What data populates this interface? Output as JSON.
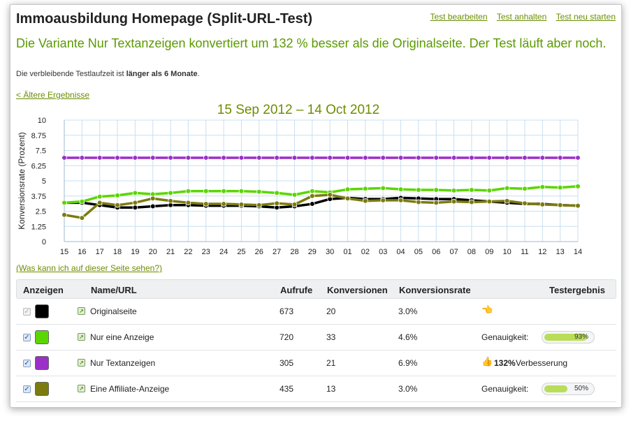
{
  "header": {
    "title": "Immoausbildung Homepage (Split-URL-Test)",
    "links": [
      "Test bearbeiten",
      "Test anhalten",
      "Test neu starten"
    ]
  },
  "summary": {
    "headline": "Die Variante Nur Textanzeigen konvertiert um 132 % besser als die Originalseite. Der Test läuft aber noch.",
    "remaining_prefix": "Die verbleibende Testlaufzeit ist ",
    "remaining_value": "länger als 6 Monate",
    "remaining_suffix": "."
  },
  "older_results_link": "< Ältere Ergebnisse",
  "date_range": "15 Sep 2012 – 14 Oct 2012",
  "help_link": "(Was kann ich auf dieser Seite sehen?)",
  "chart_data": {
    "type": "line",
    "title": "15 Sep 2012 – 14 Oct 2012",
    "xlabel": "",
    "ylabel": "Konversionsrate (Prozent)",
    "categories": [
      "15",
      "16",
      "17",
      "18",
      "19",
      "20",
      "21",
      "22",
      "23",
      "24",
      "25",
      "26",
      "27",
      "28",
      "29",
      "30",
      "01",
      "02",
      "03",
      "04",
      "05",
      "06",
      "07",
      "08",
      "09",
      "10",
      "11",
      "12",
      "13",
      "14"
    ],
    "yticks": [
      "0",
      "1.25",
      "2.5",
      "3.75",
      "5",
      "6.25",
      "7.5",
      "8.75",
      "10"
    ],
    "ylim": [
      0,
      10
    ],
    "grid": true,
    "series": [
      {
        "name": "Originalseite",
        "color": "#000000",
        "values": [
          3.2,
          3.2,
          3.0,
          2.8,
          2.8,
          2.9,
          3.0,
          3.0,
          2.95,
          2.95,
          2.95,
          2.9,
          2.8,
          2.9,
          3.1,
          3.5,
          3.6,
          3.5,
          3.5,
          3.6,
          3.55,
          3.5,
          3.5,
          3.4,
          3.3,
          3.2,
          3.1,
          3.1,
          3.0,
          2.95
        ]
      },
      {
        "name": "Nur eine Anzeige",
        "color": "#5ad600",
        "values": [
          3.2,
          3.3,
          3.7,
          3.8,
          4.0,
          3.9,
          4.0,
          4.15,
          4.15,
          4.15,
          4.15,
          4.1,
          4.0,
          3.85,
          4.15,
          4.05,
          4.3,
          4.35,
          4.4,
          4.3,
          4.25,
          4.25,
          4.2,
          4.25,
          4.2,
          4.4,
          4.35,
          4.5,
          4.45,
          4.55
        ]
      },
      {
        "name": "Nur Textanzeigen",
        "color": "#9b2fc8",
        "values": [
          6.9,
          6.9,
          6.9,
          6.9,
          6.9,
          6.9,
          6.9,
          6.9,
          6.9,
          6.9,
          6.9,
          6.9,
          6.9,
          6.9,
          6.9,
          6.9,
          6.9,
          6.9,
          6.9,
          6.9,
          6.9,
          6.9,
          6.9,
          6.9,
          6.9,
          6.9,
          6.9,
          6.9,
          6.9,
          6.9
        ]
      },
      {
        "name": "Eine Affiliate-Anzeige",
        "color": "#7b7b10",
        "values": [
          2.2,
          1.95,
          3.2,
          3.0,
          3.2,
          3.55,
          3.35,
          3.2,
          3.1,
          3.1,
          3.05,
          3.0,
          3.15,
          3.05,
          3.75,
          3.85,
          3.55,
          3.35,
          3.4,
          3.4,
          3.25,
          3.2,
          3.3,
          3.25,
          3.3,
          3.35,
          3.15,
          3.05,
          3.0,
          2.95
        ]
      }
    ]
  },
  "table": {
    "headers": {
      "anzeigen": "Anzeigen",
      "name": "Name/URL",
      "aufrufe": "Aufrufe",
      "konversionen": "Konversionen",
      "rate": "Konversionsrate",
      "ergebnis": "Testergebnis"
    },
    "rows": [
      {
        "checked": false,
        "color": "#000000",
        "name": "Originalseite",
        "aufrufe": "673",
        "konversionen": "20",
        "rate": "3.0%",
        "result_type": "baseline",
        "result_icon": "thumb-left-icon"
      },
      {
        "checked": true,
        "color": "#5ad600",
        "name": "Nur eine Anzeige",
        "aufrufe": "720",
        "konversionen": "33",
        "rate": "4.6%",
        "result_type": "meter",
        "result_label": "Genauigkeit:",
        "result_value": "93%",
        "result_fraction": 0.93
      },
      {
        "checked": true,
        "color": "#9b2fc8",
        "name": "Nur Textanzeigen",
        "aufrufe": "305",
        "konversionen": "21",
        "rate": "6.9%",
        "result_type": "improvement",
        "result_icon": "thumbs-up-icon",
        "result_value": "132%",
        "result_label": "Verbesserung"
      },
      {
        "checked": true,
        "color": "#7b7b10",
        "name": "Eine Affiliate-Anzeige",
        "aufrufe": "435",
        "konversionen": "13",
        "rate": "3.0%",
        "result_type": "meter",
        "result_label": "Genauigkeit:",
        "result_value": "50%",
        "result_fraction": 0.5
      }
    ]
  }
}
